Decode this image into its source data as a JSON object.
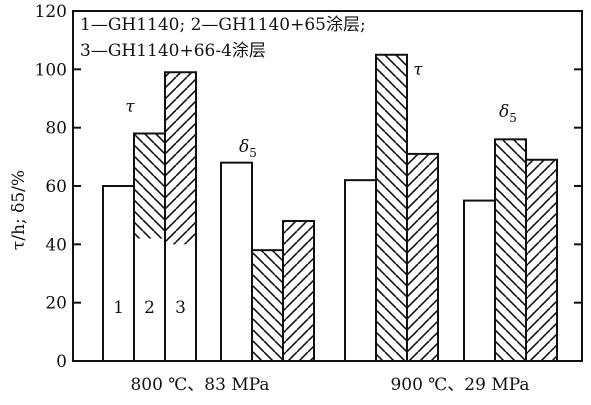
{
  "chart_data": {
    "type": "bar",
    "ylabel": "τ/h; δ5/%",
    "ylim": [
      0,
      120
    ],
    "yticks": [
      0,
      20,
      40,
      60,
      80,
      100,
      120
    ],
    "legend": [
      "1—GH1140; 2—GH1140+65涂层;",
      "3—GH1140+66-4涂层"
    ],
    "series": [
      {
        "name": "1",
        "pattern": "plain"
      },
      {
        "name": "2",
        "pattern": "back-diagonal"
      },
      {
        "name": "3",
        "pattern": "forward-diagonal"
      }
    ],
    "groups": [
      {
        "label": "800 ℃、83 MPa",
        "subgroups": [
          {
            "metric": "τ",
            "values": [
              60,
              78,
              99
            ]
          },
          {
            "metric": "δ5",
            "values": [
              68,
              38,
              48
            ]
          }
        ]
      },
      {
        "label": "900 ℃、29 MPa",
        "subgroups": [
          {
            "metric": "τ",
            "values": [
              62,
              105,
              71
            ]
          },
          {
            "metric": "δ5",
            "values": [
              55,
              76,
              69
            ]
          }
        ]
      }
    ],
    "bar_numbers": [
      "1",
      "2",
      "3"
    ],
    "grid": false,
    "legend_position": "top-left"
  },
  "colors": {
    "ink": "#111111",
    "background": "#ffffff"
  }
}
